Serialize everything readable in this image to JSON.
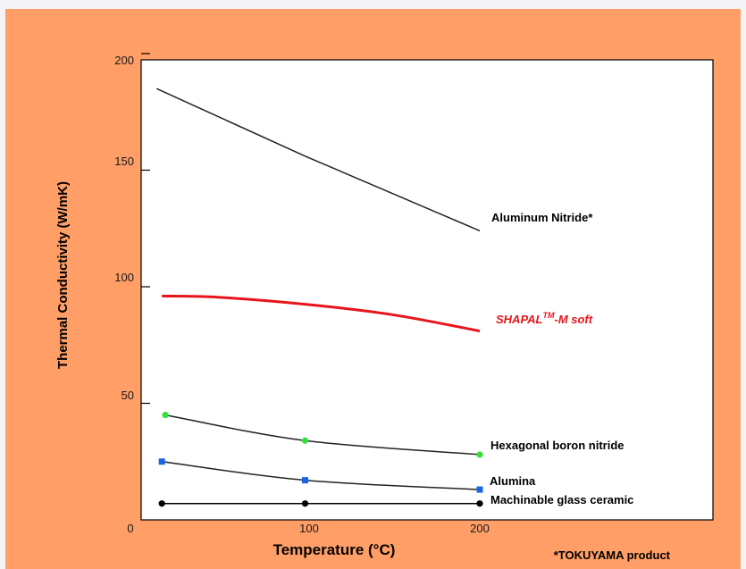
{
  "chart_data": {
    "type": "line",
    "xlabel": "Temperature (°C)",
    "ylabel": "Thermal Conductivity (W/mK)",
    "xlim": [
      0,
      300
    ],
    "ylim": [
      0,
      200
    ],
    "x_ticks": [
      0,
      100,
      200
    ],
    "y_ticks": [
      0,
      50,
      100,
      150,
      200
    ],
    "grid": false,
    "footnote": "*TOKUYAMA product",
    "series": [
      {
        "name": "Aluminum Nitride*",
        "color": "#222222",
        "marker": "none",
        "x": [
          15,
          100,
          200
        ],
        "y": [
          185,
          156,
          124
        ]
      },
      {
        "name": "SHAPAL",
        "name_sup": "TM",
        "name_suffix": "-M soft",
        "color": "#e8141b",
        "marker": "none",
        "x": [
          18,
          50,
          100,
          150,
          200
        ],
        "y": [
          96,
          95.5,
          92.5,
          88,
          81
        ]
      },
      {
        "name": "Hexagonal boron nitride",
        "color": "#222222",
        "marker": "circle",
        "marker_color": "#33e03a",
        "x": [
          20,
          100,
          200
        ],
        "y": [
          45,
          34,
          28
        ]
      },
      {
        "name": "Alumina",
        "color": "#222222",
        "marker": "square",
        "marker_color": "#1a64e6",
        "x": [
          18,
          100,
          200
        ],
        "y": [
          25,
          17,
          13
        ]
      },
      {
        "name": "Machinable glass ceramic",
        "color": "#000000",
        "marker": "circle",
        "marker_color": "#000000",
        "x": [
          18,
          100,
          200
        ],
        "y": [
          7,
          7,
          7
        ]
      }
    ]
  }
}
